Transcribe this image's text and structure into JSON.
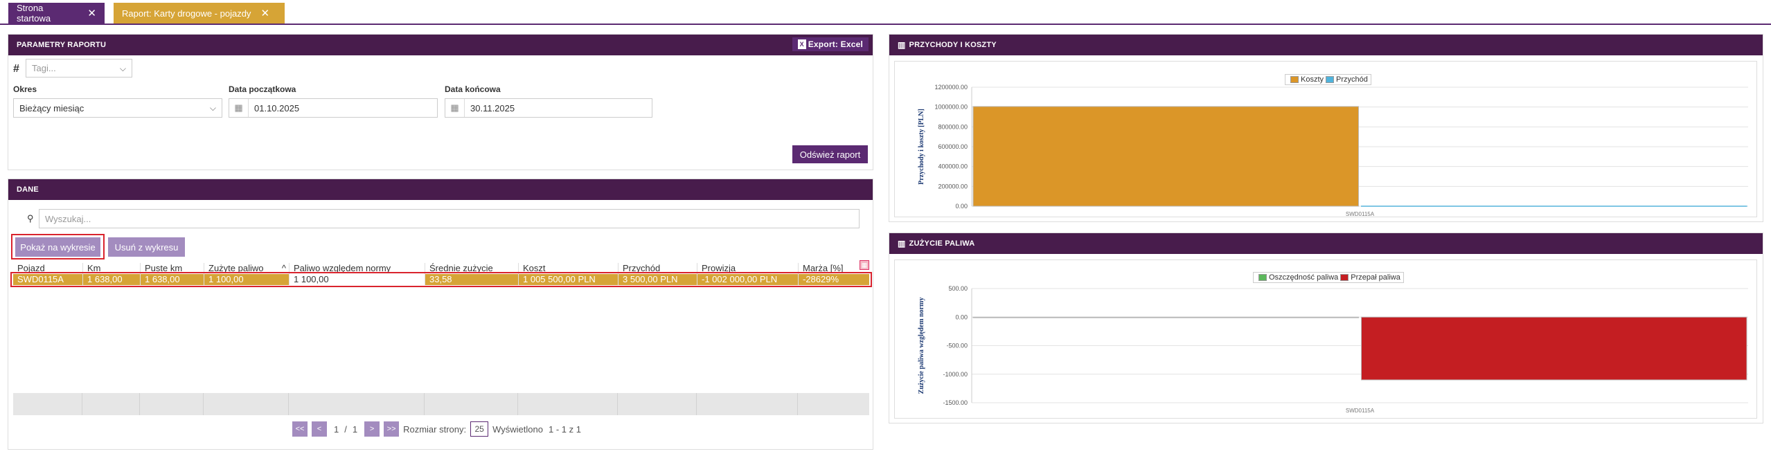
{
  "tabs": [
    {
      "label": "Strona startowa",
      "close": "✕"
    },
    {
      "label": "Raport: Karty drogowe - pojazdy",
      "close": "✕"
    }
  ],
  "params": {
    "title": "PARAMETRY RAPORTU",
    "export_label": "Export: Excel",
    "hash": "#",
    "tags_placeholder": "Tagi...",
    "period_label": "Okres",
    "period_value": "Bieżący miesiąc",
    "start_label": "Data początkowa",
    "start_value": "01.10.2025",
    "end_label": "Data końcowa",
    "end_value": "30.11.2025",
    "refresh_label": "Odśwież raport"
  },
  "data_panel": {
    "title": "DANE",
    "search_placeholder": "Wyszukaj...",
    "show_chart_label": "Pokaż na wykresie",
    "remove_chart_label": "Usuń z wykresu",
    "columns": [
      "Pojazd",
      "Km",
      "Puste km",
      "Zużyte paliwo",
      "Paliwo względem normy",
      "Średnie zużycie",
      "Koszt",
      "Przychód",
      "Prowizja",
      "Marża [%]"
    ],
    "row": [
      "SWD0115A",
      "1 638,00",
      "1 638,00",
      "1 100,00",
      "1 100,00",
      "33,58",
      "1 005 500,00 PLN",
      "3 500,00 PLN",
      "-1 002 000,00 PLN",
      "-28629%"
    ],
    "pager": {
      "first": "<<",
      "prev": "<",
      "page": "1",
      "sep": "/",
      "total": "1",
      "next": ">",
      "last": ">>",
      "size_label": "Rozmiar strony:",
      "size_value": "25",
      "shown_label": "Wyświetlono",
      "shown_value": "1 - 1  z  1"
    }
  },
  "income_chart": {
    "title": "PRZYCHODY I KOSZTY",
    "legend": [
      "Koszty",
      "Przychód"
    ],
    "colors": {
      "koszty": "#db9628",
      "przychod": "#4fb3dc"
    },
    "ylabel": "Przychody i koszty [PLN]",
    "ticks": [
      "1200000.00",
      "1000000.00",
      "800000.00",
      "600000.00",
      "400000.00",
      "200000.00",
      "0.00"
    ],
    "category": "SWD0115A"
  },
  "fuel_chart": {
    "title": "ZUŻYCIE PALIWA",
    "legend": [
      "Oszczędność paliwa",
      "Przepał paliwa"
    ],
    "colors": {
      "oszczednosc": "#5cb85c",
      "przepal": "#c41e22"
    },
    "ylabel": "Zużycie paliwa względem normy",
    "ticks": [
      "500.00",
      "0.00",
      "-500.00",
      "-1000.00",
      "-1500.00"
    ],
    "category": "SWD0115A"
  },
  "chart_data": [
    {
      "type": "bar",
      "title": "PRZYCHODY I KOSZTY",
      "categories": [
        "SWD0115A"
      ],
      "series": [
        {
          "name": "Koszty",
          "values": [
            1005500
          ]
        },
        {
          "name": "Przychód",
          "values": [
            3500
          ]
        }
      ],
      "ylabel": "Przychody i koszty [PLN]",
      "ylim": [
        0,
        1200000
      ],
      "legend": "top"
    },
    {
      "type": "bar",
      "title": "ZUŻYCIE PALIWA",
      "categories": [
        "SWD0115A"
      ],
      "series": [
        {
          "name": "Oszczędność paliwa",
          "values": [
            0
          ]
        },
        {
          "name": "Przepał paliwa",
          "values": [
            -1100
          ]
        }
      ],
      "ylabel": "Zużycie paliwa względem normy",
      "ylim": [
        -1500,
        500
      ],
      "legend": "top"
    }
  ]
}
